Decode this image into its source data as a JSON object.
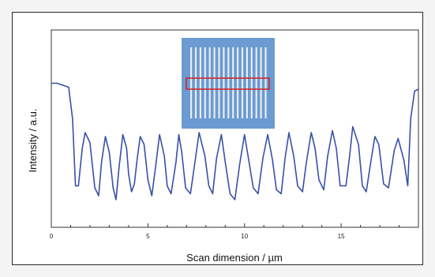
{
  "chart_data": {
    "type": "line",
    "title": "",
    "xlabel": "Scan dimension / µm",
    "ylabel": "Intensity / a.u.",
    "xlim": [
      0,
      19
    ],
    "ylim": [
      0,
      1
    ],
    "xticks": [
      0,
      5,
      10,
      15
    ],
    "xtick_labels": [
      "0",
      "5",
      "10",
      "15"
    ],
    "y_ticks_labeled": false,
    "grid": false,
    "legend": "none",
    "series": [
      {
        "color": "#3850a8",
        "x": [
          0.0,
          0.3,
          0.6,
          0.9,
          1.1,
          1.25,
          1.4,
          1.6,
          1.75,
          2.0,
          2.25,
          2.45,
          2.6,
          2.8,
          3.0,
          3.2,
          3.35,
          3.5,
          3.7,
          3.9,
          4.0,
          4.15,
          4.3,
          4.45,
          4.6,
          4.8,
          5.0,
          5.2,
          5.4,
          5.6,
          5.85,
          6.0,
          6.2,
          6.45,
          6.6,
          6.75,
          6.95,
          7.2,
          7.45,
          7.65,
          7.95,
          8.15,
          8.35,
          8.55,
          8.8,
          9.0,
          9.25,
          9.5,
          9.75,
          10.0,
          10.25,
          10.45,
          10.7,
          10.95,
          11.2,
          11.45,
          11.65,
          11.9,
          12.1,
          12.3,
          12.55,
          12.75,
          13.0,
          13.2,
          13.45,
          13.65,
          13.85,
          14.1,
          14.3,
          14.55,
          14.75,
          14.95,
          15.25,
          15.45,
          15.6,
          15.9,
          16.1,
          16.3,
          16.55,
          16.75,
          16.95,
          17.2,
          17.45,
          17.75,
          17.95,
          18.25,
          18.45,
          18.6,
          18.8,
          19.0
        ],
        "y": [
          0.73,
          0.73,
          0.72,
          0.71,
          0.55,
          0.21,
          0.21,
          0.4,
          0.48,
          0.43,
          0.2,
          0.16,
          0.33,
          0.46,
          0.38,
          0.2,
          0.14,
          0.3,
          0.47,
          0.4,
          0.27,
          0.18,
          0.22,
          0.35,
          0.46,
          0.42,
          0.24,
          0.16,
          0.31,
          0.47,
          0.36,
          0.21,
          0.17,
          0.33,
          0.47,
          0.38,
          0.2,
          0.17,
          0.34,
          0.48,
          0.36,
          0.21,
          0.17,
          0.35,
          0.47,
          0.33,
          0.17,
          0.14,
          0.32,
          0.47,
          0.32,
          0.2,
          0.17,
          0.35,
          0.47,
          0.34,
          0.19,
          0.17,
          0.35,
          0.48,
          0.36,
          0.21,
          0.18,
          0.33,
          0.48,
          0.4,
          0.24,
          0.19,
          0.36,
          0.49,
          0.4,
          0.21,
          0.21,
          0.37,
          0.51,
          0.42,
          0.21,
          0.18,
          0.34,
          0.46,
          0.42,
          0.22,
          0.2,
          0.39,
          0.45,
          0.34,
          0.21,
          0.55,
          0.69,
          0.7
        ]
      }
    ],
    "inset": {
      "type": "microscope-image",
      "background_color": "#6b9bd2",
      "line_color": "#e8ecf0",
      "highlight_color": "#d62020"
    }
  }
}
